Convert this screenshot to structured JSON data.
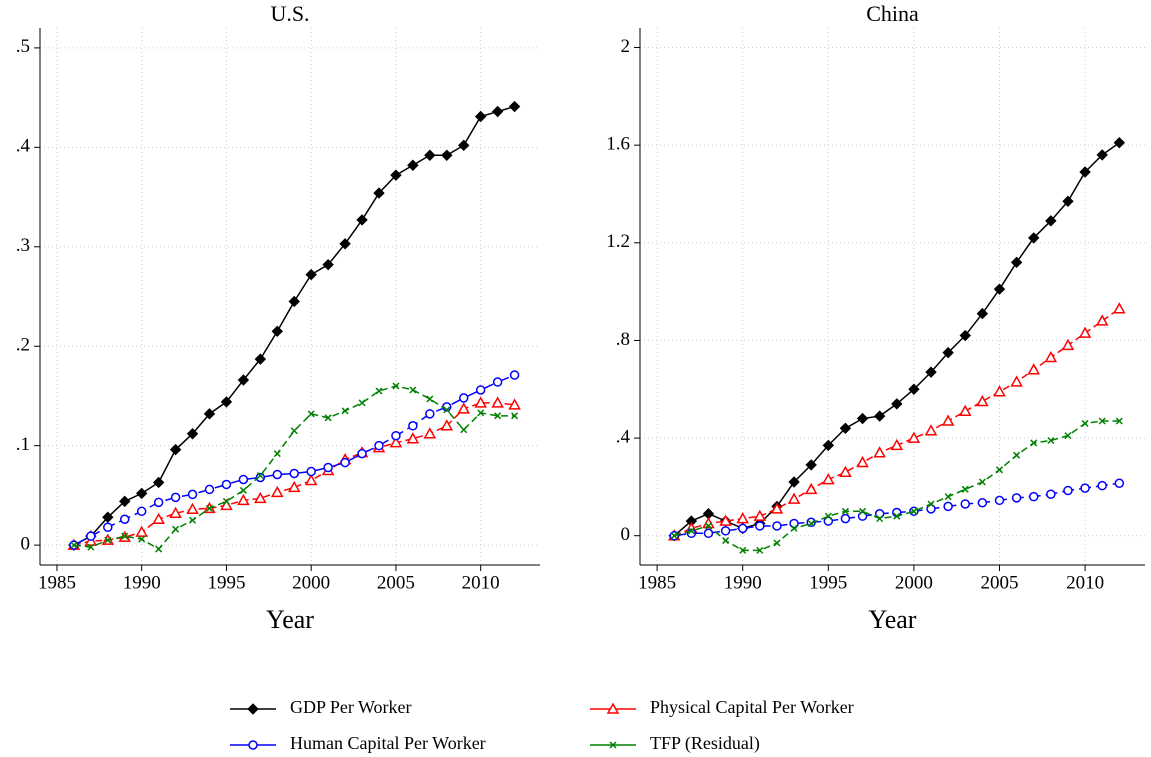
{
  "chart_data": [
    {
      "type": "line",
      "title": "U.S.",
      "x_label": "Year",
      "x": [
        1986,
        1987,
        1988,
        1989,
        1990,
        1991,
        1992,
        1993,
        1994,
        1995,
        1996,
        1997,
        1998,
        1999,
        2000,
        2001,
        2002,
        2003,
        2004,
        2005,
        2006,
        2007,
        2008,
        2009,
        2010,
        2011,
        2012
      ],
      "xlim": [
        1984,
        2013.5
      ],
      "xticks": [
        1985,
        1990,
        1995,
        2000,
        2005,
        2010
      ],
      "ylim": [
        -0.02,
        0.52
      ],
      "yticks": [
        0,
        {
          "value": 0.1,
          "label": ".1"
        },
        {
          "value": 0.2,
          "label": ".2"
        },
        {
          "value": 0.3,
          "label": ".3"
        },
        {
          "value": 0.4,
          "label": ".4"
        },
        {
          "value": 0.5,
          "label": ".5"
        }
      ],
      "grid": true,
      "series": [
        {
          "name": "GDP Per Worker",
          "color": "#000000",
          "marker": "diamond",
          "line_style": "solid",
          "values": [
            0,
            0.009,
            0.028,
            0.044,
            0.052,
            0.063,
            0.096,
            0.112,
            0.132,
            0.144,
            0.166,
            0.187,
            0.215,
            0.245,
            0.272,
            0.282,
            0.303,
            0.327,
            0.354,
            0.372,
            0.382,
            0.392,
            0.392,
            0.402,
            0.431,
            0.436,
            0.441
          ]
        },
        {
          "name": "Physical Capital Per Worker",
          "color": "#ff0000",
          "marker": "triangle",
          "line_style": "dashed",
          "values": [
            0,
            0.004,
            0.005,
            0.008,
            0.013,
            0.026,
            0.032,
            0.036,
            0.037,
            0.04,
            0.045,
            0.047,
            0.053,
            0.058,
            0.065,
            0.075,
            0.086,
            0.093,
            0.098,
            0.103,
            0.107,
            0.112,
            0.12,
            0.137,
            0.143,
            0.143,
            0.141
          ]
        },
        {
          "name": "Human Capital Per Worker",
          "color": "#0000ff",
          "marker": "circle",
          "line_style": "longdash",
          "values": [
            0,
            0.009,
            0.018,
            0.026,
            0.034,
            0.043,
            0.048,
            0.051,
            0.056,
            0.061,
            0.066,
            0.068,
            0.071,
            0.072,
            0.074,
            0.078,
            0.083,
            0.092,
            0.1,
            0.11,
            0.12,
            0.132,
            0.139,
            0.148,
            0.156,
            0.164,
            0.171
          ]
        },
        {
          "name": "TFP (Residual)",
          "color": "#008000",
          "marker": "x",
          "line_style": "dashed",
          "values": [
            0,
            -0.002,
            0.005,
            0.009,
            0.006,
            -0.004,
            0.016,
            0.025,
            0.037,
            0.044,
            0.055,
            0.07,
            0.092,
            0.115,
            0.132,
            0.128,
            0.135,
            0.143,
            0.155,
            0.16,
            0.156,
            0.147,
            0.136,
            0.116,
            0.133,
            0.13,
            0.13
          ]
        }
      ]
    },
    {
      "type": "line",
      "title": "China",
      "x_label": "Year",
      "x": [
        1986,
        1987,
        1988,
        1989,
        1990,
        1991,
        1992,
        1993,
        1994,
        1995,
        1996,
        1997,
        1998,
        1999,
        2000,
        2001,
        2002,
        2003,
        2004,
        2005,
        2006,
        2007,
        2008,
        2009,
        2010,
        2011,
        2012
      ],
      "xlim": [
        1984,
        2013.5
      ],
      "xticks": [
        1985,
        1990,
        1995,
        2000,
        2005,
        2010
      ],
      "ylim": [
        -0.12,
        2.08
      ],
      "yticks": [
        0,
        {
          "value": 0.4,
          "label": ".4"
        },
        {
          "value": 0.8,
          "label": ".8"
        },
        1.2,
        1.6,
        2
      ],
      "grid": true,
      "series": [
        {
          "name": "GDP Per Worker",
          "color": "#000000",
          "marker": "diamond",
          "line_style": "solid",
          "values": [
            0,
            0.06,
            0.09,
            0.06,
            0.03,
            0.05,
            0.12,
            0.22,
            0.29,
            0.37,
            0.44,
            0.48,
            0.49,
            0.54,
            0.6,
            0.67,
            0.75,
            0.82,
            0.91,
            1.01,
            1.12,
            1.22,
            1.29,
            1.37,
            1.49,
            1.56,
            1.61
          ]
        },
        {
          "name": "Physical Capital Per Worker",
          "color": "#ff0000",
          "marker": "triangle",
          "line_style": "dashed",
          "values": [
            0,
            0.03,
            0.05,
            0.06,
            0.07,
            0.08,
            0.11,
            0.15,
            0.19,
            0.23,
            0.26,
            0.3,
            0.34,
            0.37,
            0.4,
            0.43,
            0.47,
            0.51,
            0.55,
            0.59,
            0.63,
            0.68,
            0.73,
            0.78,
            0.83,
            0.88,
            0.93
          ]
        },
        {
          "name": "Human Capital Per Worker",
          "color": "#0000ff",
          "marker": "circle",
          "line_style": "longdash",
          "values": [
            0,
            0.01,
            0.01,
            0.02,
            0.03,
            0.04,
            0.04,
            0.05,
            0.055,
            0.06,
            0.07,
            0.08,
            0.09,
            0.095,
            0.1,
            0.11,
            0.12,
            0.13,
            0.135,
            0.145,
            0.155,
            0.16,
            0.17,
            0.185,
            0.195,
            0.205,
            0.215
          ]
        },
        {
          "name": "TFP (Residual)",
          "color": "#008000",
          "marker": "x",
          "line_style": "dashed",
          "values": [
            0,
            0.02,
            0.04,
            -0.02,
            -0.06,
            -0.06,
            -0.03,
            0.03,
            0.05,
            0.08,
            0.1,
            0.1,
            0.07,
            0.08,
            0.1,
            0.13,
            0.16,
            0.19,
            0.22,
            0.27,
            0.33,
            0.38,
            0.39,
            0.41,
            0.46,
            0.47,
            0.47
          ]
        }
      ]
    }
  ]
}
